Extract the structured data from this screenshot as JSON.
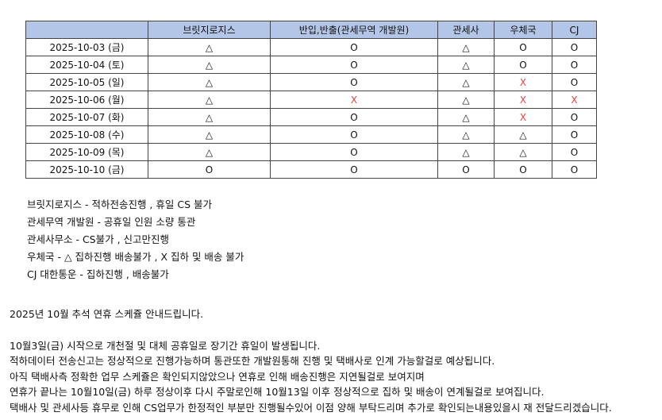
{
  "table": {
    "headers": [
      "",
      "브릿지로지스",
      "반입,반출(관세무역 개발원)",
      "관세사",
      "우체국",
      "CJ"
    ],
    "rows": [
      {
        "date": "2025-10-03 (금)",
        "cells": [
          "△",
          "O",
          "△",
          "O",
          "O"
        ]
      },
      {
        "date": "2025-10-04 (토)",
        "cells": [
          "△",
          "O",
          "△",
          "O",
          "O"
        ]
      },
      {
        "date": "2025-10-05 (일)",
        "cells": [
          "△",
          "O",
          "△",
          "X",
          "O"
        ]
      },
      {
        "date": "2025-10-06 (월)",
        "cells": [
          "△",
          "X",
          "△",
          "X",
          "X"
        ]
      },
      {
        "date": "2025-10-07 (화)",
        "cells": [
          "△",
          "O",
          "△",
          "X",
          "O"
        ]
      },
      {
        "date": "2025-10-08 (수)",
        "cells": [
          "△",
          "O",
          "△",
          "△",
          "O"
        ]
      },
      {
        "date": "2025-10-09 (목)",
        "cells": [
          "△",
          "O",
          "△",
          "△",
          "O"
        ]
      },
      {
        "date": "2025-10-10 (금)",
        "cells": [
          "O",
          "O",
          "O",
          "O",
          "O"
        ]
      }
    ],
    "colors": {
      "header_bg": "#b4c6e7",
      "x_mark": "#e8413e"
    }
  },
  "notes": [
    "브릿지로지스 - 적하전송진행 , 휴일 CS 불가",
    "관세무역 개발원 - 공휴일 인원 소량 통관",
    "관세사무소 - CS불가 , 신고만진행",
    "우체국 - △ 집하진행 배송불가 , X 집하 및 배송 불가",
    "CJ 대한통운 - 집하진행 , 배송불가"
  ],
  "announcement": {
    "title": "2025년 10월 추석 연휴 스케쥴 안내드립니다.",
    "lines": [
      "10월3일(금) 시작으로 개천절 및 대체 공휴일로 장기간 휴일이 발생됩니다.",
      "적하데이터 전송신고는 정상적으로 진행가능하며 통관또한 개발원통해 진행 및 택배사로 인계 가능할걸로 예상됩니다.",
      "아직 택배사측 정확한 업무 스케쥴은 확인되지않았으나 연휴로 인해 배송진행은 지연될걸로 보여지며",
      "연휴가 끝나는 10월10일(금) 하루 정상이후 다시 주말로인해 10월13일 이후 정상적으로 집하 및 배송이 연계될걸로 보여집니다.",
      "택배사 및 관세사등 휴무로 인해 CS업무가 한정적인 부분만 진행될수있어 이점 양해 부탁드리며 추가로 확인되는내용있을시 재 전달드리겠습니다."
    ]
  }
}
